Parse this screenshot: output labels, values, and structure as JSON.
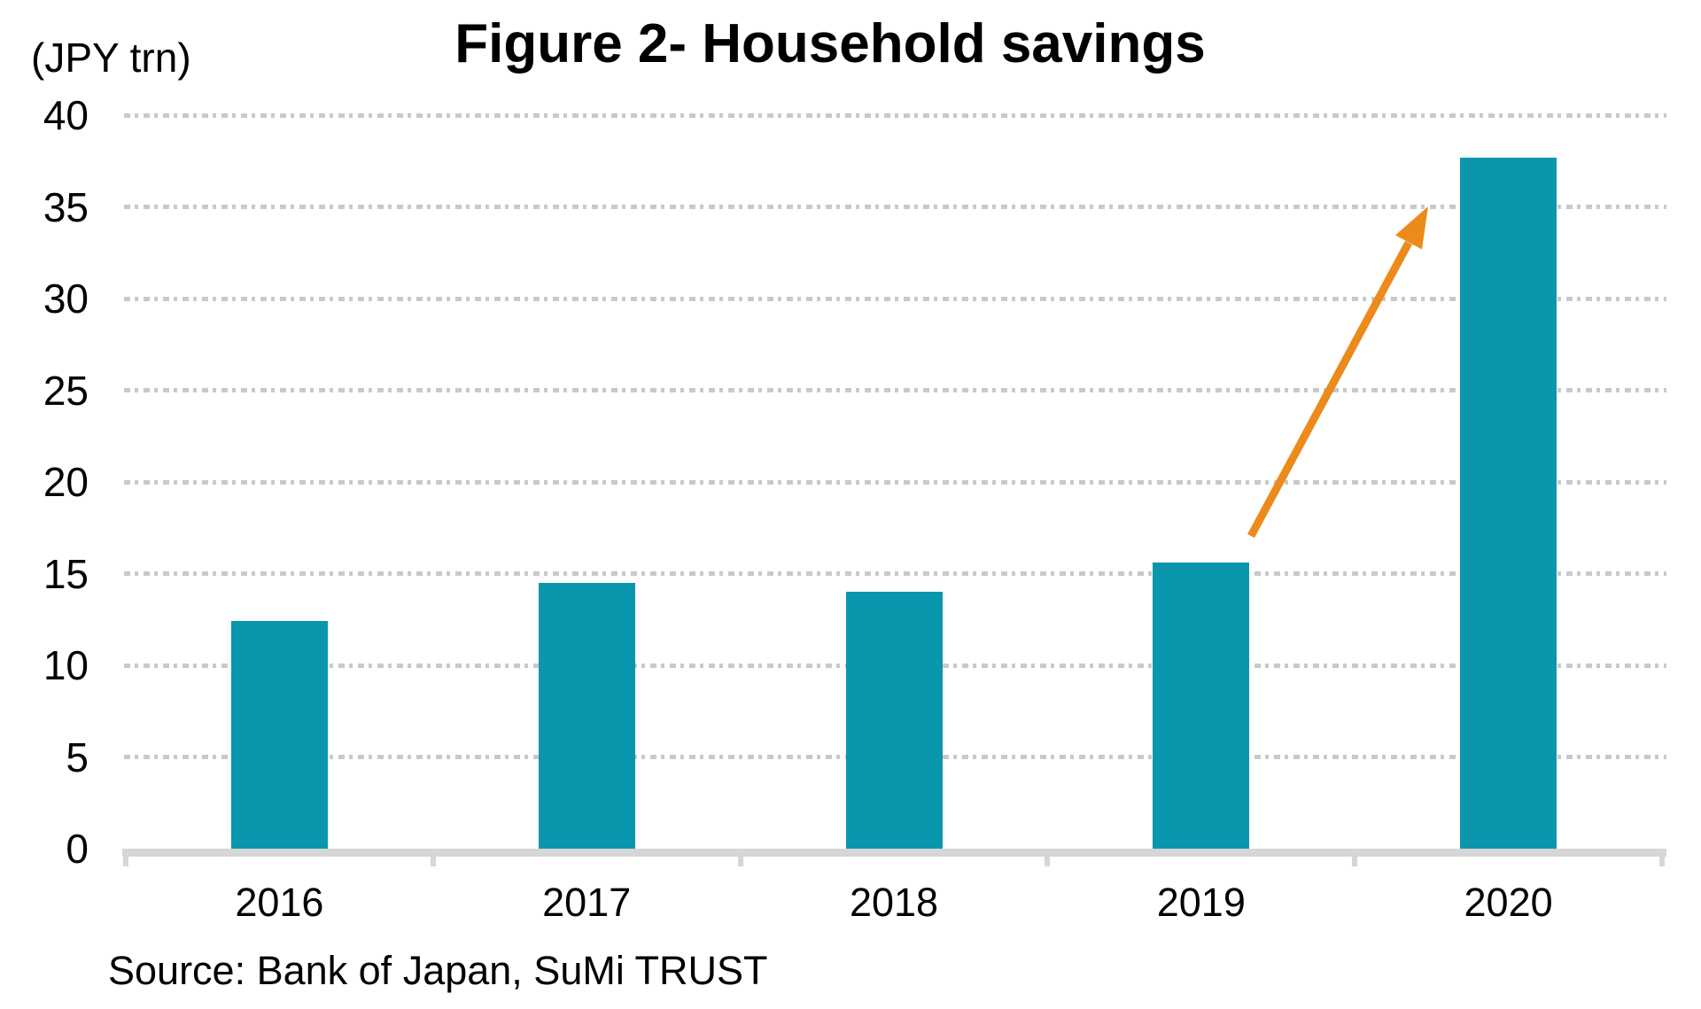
{
  "title": "Figure 2- Household savings",
  "unit_label": "(JPY trn)",
  "source_note": "Source: Bank of Japan, SuMi TRUST",
  "colors": {
    "bar": "#0a96ac",
    "arrow": "#ec8a1c",
    "gridline": "#c9c9c9",
    "axis": "#d6d6d6",
    "text": "#000000",
    "background": "#ffffff"
  },
  "chart_data": {
    "type": "bar",
    "title": "Figure 2- Household savings",
    "ylabel": "(JPY trn)",
    "categories": [
      "2016",
      "2017",
      "2018",
      "2019",
      "2020"
    ],
    "values": [
      12.4,
      14.5,
      14.0,
      15.6,
      37.7
    ],
    "ylim": [
      0,
      40
    ],
    "yticks": [
      0,
      5,
      10,
      15,
      20,
      25,
      30,
      35,
      40
    ],
    "grid": "horizontal-dotted",
    "legend": "none",
    "annotations": [
      {
        "type": "arrow",
        "from": {
          "category": "2019",
          "value": 17.1
        },
        "to": {
          "category": "2020",
          "value": 35.0
        },
        "meaning": "sharp surge in household savings from 2019 to 2020"
      }
    ],
    "source": "Source: Bank of Japan, SuMi TRUST"
  }
}
